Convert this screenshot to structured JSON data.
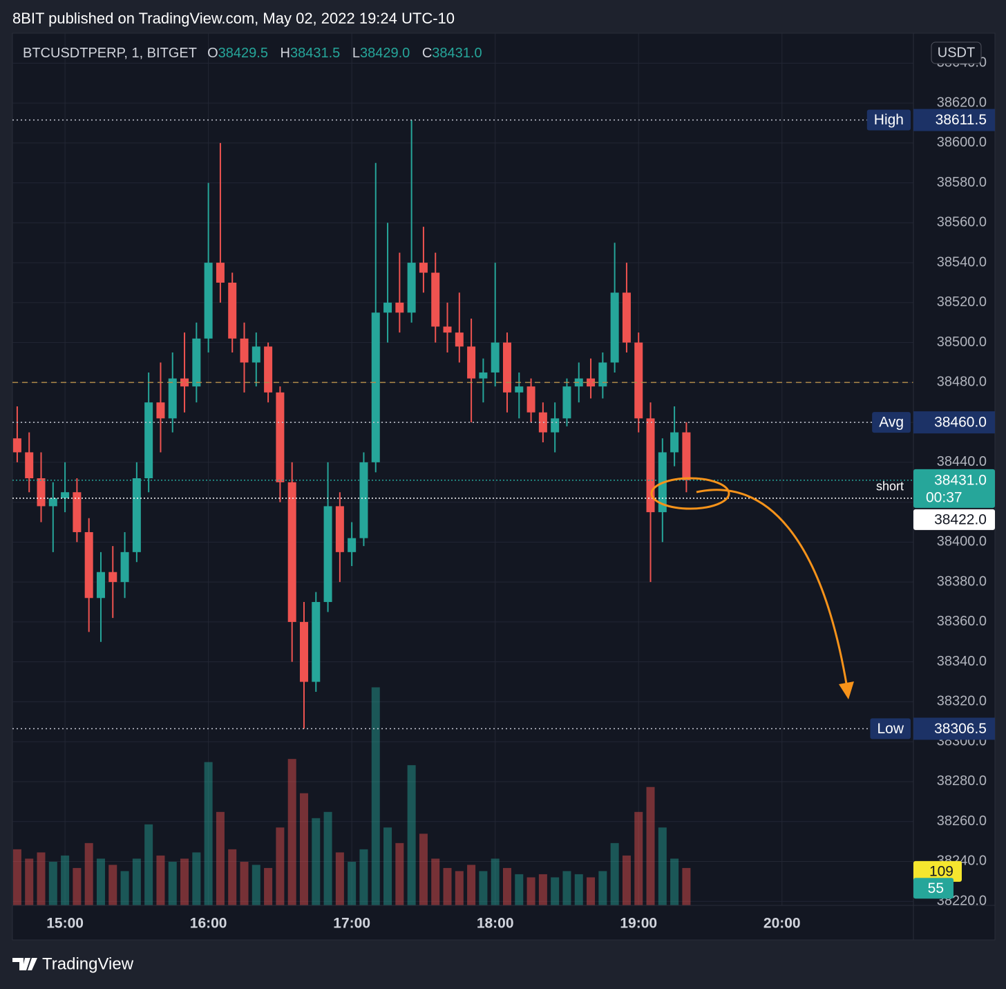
{
  "header": {
    "title": "8BIT published on TradingView.com, May 02, 2022 19:24 UTC-10",
    "footer": "TradingView"
  },
  "chart_data": {
    "type": "candlestick",
    "legend": {
      "symbol": "BTCUSDTPERP, 1, BITGET",
      "ohlc": [
        {
          "key": "O",
          "value": 38429.5,
          "label": "38429.5"
        },
        {
          "key": "H",
          "value": 38431.5,
          "label": "38431.5"
        },
        {
          "key": "L",
          "value": 38429,
          "label": "38429.0"
        },
        {
          "key": "C",
          "value": 38431,
          "label": "38431.0"
        }
      ]
    },
    "currency": "USDT",
    "up_color": "#26a69a",
    "down_color": "#ef5350",
    "x": [
      "14:40",
      "14:45",
      "14:50",
      "14:55",
      "15:00",
      "15:05",
      "15:10",
      "15:15",
      "15:20",
      "15:25",
      "15:30",
      "15:35",
      "15:40",
      "15:45",
      "15:50",
      "15:55",
      "16:00",
      "16:05",
      "16:10",
      "16:15",
      "16:20",
      "16:25",
      "16:30",
      "16:35",
      "16:40",
      "16:45",
      "16:50",
      "16:55",
      "17:00",
      "17:05",
      "17:10",
      "17:15",
      "17:20",
      "17:25",
      "17:30",
      "17:35",
      "17:40",
      "17:45",
      "17:50",
      "17:55",
      "18:00",
      "18:05",
      "18:10",
      "18:15",
      "18:20",
      "18:25",
      "18:30",
      "18:35",
      "18:40",
      "18:45",
      "18:50",
      "18:55",
      "19:00",
      "19:05",
      "19:10",
      "19:15",
      "19:20"
    ],
    "open": [
      38452,
      38445,
      38432,
      38418,
      38422,
      38425,
      38405,
      38372,
      38385,
      38380,
      38395,
      38432,
      38470,
      38462,
      38482,
      38478,
      38502,
      38540,
      38530,
      38502,
      38490,
      38498,
      38475,
      38430,
      38360,
      38330,
      38370,
      38418,
      38395,
      38402,
      38440,
      38515,
      38520,
      38515,
      38540,
      38535,
      38508,
      38505,
      38498,
      38482,
      38485,
      38500,
      38475,
      38478,
      38465,
      38455,
      38462,
      38478,
      38482,
      38478,
      38490,
      38525,
      38500,
      38462,
      38415,
      38445,
      38455
    ],
    "high": [
      38468,
      38455,
      38445,
      38430,
      38440,
      38432,
      38412,
      38395,
      38398,
      38405,
      38440,
      38485,
      38490,
      38495,
      38505,
      38510,
      38580,
      38600,
      38535,
      38510,
      38505,
      38500,
      38478,
      38440,
      38370,
      38375,
      38440,
      38425,
      38410,
      38445,
      38590,
      38560,
      38545,
      38611.5,
      38558,
      38545,
      38520,
      38525,
      38512,
      38492,
      38540,
      38505,
      38485,
      38482,
      38470,
      38470,
      38482,
      38490,
      38492,
      38495,
      38550,
      38540,
      38505,
      38470,
      38452,
      38468,
      38460
    ],
    "low": [
      38440,
      38425,
      38410,
      38395,
      38415,
      38400,
      38355,
      38350,
      38362,
      38372,
      38390,
      38425,
      38445,
      38455,
      38465,
      38470,
      38495,
      38520,
      38495,
      38475,
      38478,
      38470,
      38420,
      38340,
      38306.5,
      38325,
      38365,
      38380,
      38388,
      38398,
      38435,
      38500,
      38505,
      38510,
      38525,
      38500,
      38495,
      38490,
      38460,
      38470,
      38478,
      38465,
      38462,
      38460,
      38450,
      38445,
      38458,
      38470,
      38472,
      38472,
      38485,
      38495,
      38455,
      38380,
      38400,
      38438,
      38425
    ],
    "close": [
      38445,
      38432,
      38418,
      38422,
      38425,
      38405,
      38372,
      38385,
      38380,
      38395,
      38432,
      38470,
      38462,
      38482,
      38478,
      38502,
      38540,
      38530,
      38502,
      38490,
      38498,
      38475,
      38430,
      38360,
      38330,
      38370,
      38418,
      38395,
      38402,
      38440,
      38515,
      38520,
      38515,
      38540,
      38535,
      38508,
      38505,
      38498,
      38482,
      38485,
      38500,
      38475,
      38478,
      38465,
      38455,
      38462,
      38478,
      38482,
      38478,
      38490,
      38525,
      38500,
      38462,
      38415,
      38445,
      38455,
      38431
    ],
    "volume": [
      180,
      150,
      170,
      140,
      160,
      120,
      200,
      150,
      130,
      110,
      150,
      260,
      160,
      140,
      150,
      170,
      460,
      300,
      180,
      140,
      130,
      120,
      250,
      470,
      360,
      280,
      300,
      170,
      140,
      180,
      700,
      250,
      200,
      450,
      230,
      150,
      120,
      110,
      130,
      110,
      150,
      120,
      100,
      90,
      100,
      90,
      110,
      100,
      90,
      110,
      200,
      160,
      300,
      380,
      250,
      150,
      120
    ],
    "volume_ma": 109,
    "volume_last": 55,
    "xlim": [
      "14:38",
      "20:55"
    ],
    "xticks": [
      "15:00",
      "16:00",
      "17:00",
      "18:00",
      "19:00",
      "20:00"
    ],
    "ylim": [
      38218,
      38655
    ],
    "yticks": [
      {
        "value": 38220,
        "label": "38220.0"
      },
      {
        "value": 38240,
        "label": "38240.0"
      },
      {
        "value": 38260,
        "label": "38260.0"
      },
      {
        "value": 38280,
        "label": "38280.0"
      },
      {
        "value": 38300,
        "label": "38300.0"
      },
      {
        "value": 38320,
        "label": "38320.0"
      },
      {
        "value": 38340,
        "label": "38340.0"
      },
      {
        "value": 38360,
        "label": "38360.0"
      },
      {
        "value": 38380,
        "label": "38380.0"
      },
      {
        "value": 38400,
        "label": "38400.0"
      },
      {
        "value": 38420,
        "label": "38420.0"
      },
      {
        "value": 38440,
        "label": "38440.0"
      },
      {
        "value": 38460,
        "label": "38460.0"
      },
      {
        "value": 38480,
        "label": "38480.0"
      },
      {
        "value": 38500,
        "label": "38500.0"
      },
      {
        "value": 38520,
        "label": "38520.0"
      },
      {
        "value": 38540,
        "label": "38540.0"
      },
      {
        "value": 38560,
        "label": "38560.0"
      },
      {
        "value": 38580,
        "label": "38580.0"
      },
      {
        "value": 38600,
        "label": "38600.0"
      },
      {
        "value": 38620,
        "label": "38620.0"
      },
      {
        "value": 38640,
        "label": "38640.0"
      }
    ],
    "y2lim": [
      0,
      2800
    ],
    "grid": true,
    "price_lines": [
      {
        "name": "High",
        "value": 38611.5,
        "label": "38611.5"
      },
      {
        "name": "Avg",
        "value": 38460,
        "label": "38460.0"
      },
      {
        "name": "Low",
        "value": 38306.5,
        "label": "38306.5"
      }
    ],
    "short_line": {
      "name": "short",
      "value": 38422,
      "label": "38422.0"
    },
    "last_price": {
      "value": 38431,
      "label": "38431.0",
      "countdown": "00:37"
    },
    "reference_line": 38480
  }
}
